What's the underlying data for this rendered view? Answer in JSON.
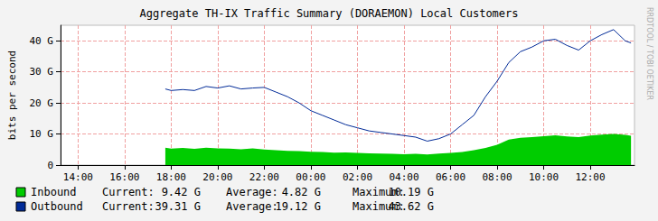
{
  "chart_data": {
    "type": "line",
    "title": "Aggregate TH-IX Traffic Summary (DORAEMON) Local Customers",
    "y_label": "bits per second",
    "annotation": "RRDTOOL / TOBI OETIKER",
    "grid": true,
    "xlim": [
      13.25,
      37.9
    ],
    "xticks": [
      {
        "value": 14,
        "label": "14:00"
      },
      {
        "value": 16,
        "label": "16:00"
      },
      {
        "value": 18,
        "label": "18:00"
      },
      {
        "value": 20,
        "label": "20:00"
      },
      {
        "value": 22,
        "label": "22:00"
      },
      {
        "value": 24,
        "label": "00:00"
      },
      {
        "value": 26,
        "label": "02:00"
      },
      {
        "value": 28,
        "label": "04:00"
      },
      {
        "value": 30,
        "label": "06:00"
      },
      {
        "value": 32,
        "label": "08:00"
      },
      {
        "value": 34,
        "label": "10:00"
      },
      {
        "value": 36,
        "label": "12:00"
      }
    ],
    "ylim": [
      0,
      45
    ],
    "yticks": [
      0,
      {
        "value": 10,
        "label": "10 G"
      },
      {
        "value": 20,
        "label": "20 G"
      },
      {
        "value": 30,
        "label": "30 G"
      },
      {
        "value": 40,
        "label": "40 G"
      }
    ],
    "x": [
      17.75,
      18,
      18.5,
      19,
      19.5,
      20,
      20.5,
      21,
      21.5,
      22,
      22.5,
      23,
      23.5,
      24,
      24.5,
      25,
      25.5,
      26,
      26.5,
      27,
      27.5,
      28,
      28.5,
      29,
      29.5,
      30,
      30.5,
      31,
      31.5,
      32,
      32.5,
      33,
      33.5,
      34,
      34.5,
      35,
      35.5,
      36,
      36.5,
      37,
      37.5,
      37.75
    ],
    "stats_labels": [
      "Current:",
      "Average:",
      "Maximum:"
    ],
    "series": [
      {
        "name": "Inbound",
        "type": "area",
        "color": "#00cc00",
        "values": [
          5.6,
          5.3,
          5.5,
          5.2,
          5.6,
          5.4,
          5.3,
          5.1,
          5.4,
          5.0,
          4.8,
          4.6,
          4.5,
          4.3,
          4.2,
          4.0,
          4.1,
          3.9,
          3.8,
          3.7,
          3.6,
          3.5,
          3.6,
          3.4,
          3.7,
          3.9,
          4.2,
          4.8,
          5.5,
          6.5,
          8.2,
          8.8,
          9.0,
          9.3,
          9.6,
          9.2,
          9.0,
          9.5,
          9.8,
          10.0,
          9.7,
          9.42
        ],
        "stats": [
          {
            "value": 9.42,
            "label": "9.42 G"
          },
          {
            "value": 4.82,
            "label": "4.82 G"
          },
          {
            "value": 10.19,
            "label": "10.19 G"
          }
        ]
      },
      {
        "name": "Outbound",
        "type": "line",
        "color": "#002a97",
        "values": [
          24.5,
          24,
          24.3,
          24,
          25.3,
          24.8,
          25.5,
          24.5,
          24.8,
          25,
          23.5,
          22,
          20,
          17.5,
          16,
          14.5,
          13,
          12,
          11,
          10.5,
          10,
          9.5,
          9,
          7.7,
          8.5,
          10,
          13,
          16,
          22,
          27,
          33,
          36.5,
          38,
          40,
          40.5,
          38.5,
          37,
          40,
          42,
          43.6,
          40,
          39.31
        ],
        "stats": [
          {
            "value": 39.31,
            "label": "39.31 G"
          },
          {
            "value": 19.12,
            "label": "19.12 G"
          },
          {
            "value": 43.62,
            "label": "43.62 G"
          }
        ]
      }
    ]
  }
}
